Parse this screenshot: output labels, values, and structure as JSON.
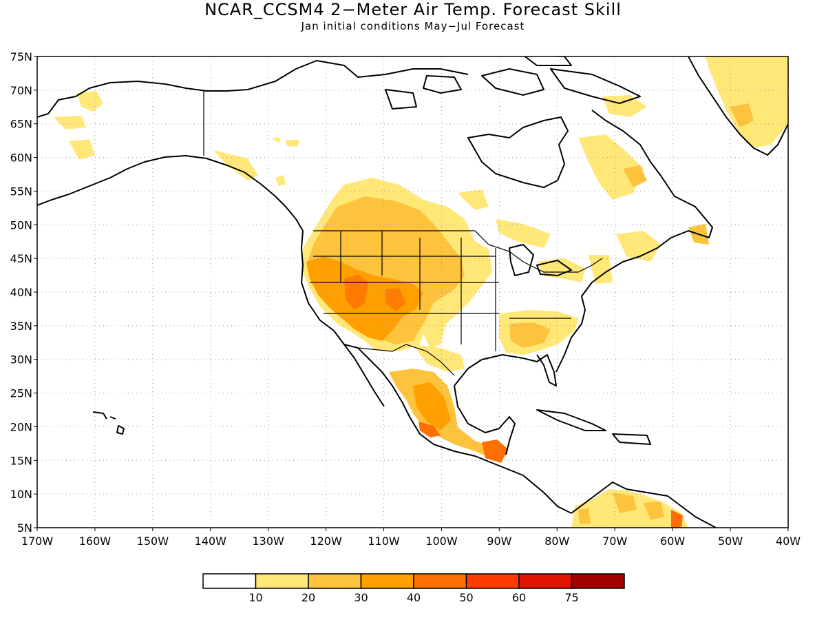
{
  "title": "NCAR_CCSM4 2−Meter Air Temp. Forecast Skill",
  "subtitle": "Jan initial conditions   May−Jul Forecast",
  "map": {
    "projection": "lat-lon",
    "lon_range": [
      -170,
      -40
    ],
    "lat_range": [
      5,
      75
    ],
    "gridlines": "dotted",
    "y_ticks": [
      {
        "value": 75,
        "label": "75N"
      },
      {
        "value": 70,
        "label": "70N"
      },
      {
        "value": 65,
        "label": "65N"
      },
      {
        "value": 60,
        "label": "60N"
      },
      {
        "value": 55,
        "label": "55N"
      },
      {
        "value": 50,
        "label": "50N"
      },
      {
        "value": 45,
        "label": "45N"
      },
      {
        "value": 40,
        "label": "40N"
      },
      {
        "value": 35,
        "label": "35N"
      },
      {
        "value": 30,
        "label": "30N"
      },
      {
        "value": 25,
        "label": "25N"
      },
      {
        "value": 20,
        "label": "20N"
      },
      {
        "value": 15,
        "label": "15N"
      },
      {
        "value": 10,
        "label": "10N"
      },
      {
        "value": 5,
        "label": "5N"
      }
    ],
    "x_ticks": [
      {
        "value": -170,
        "label": "170W"
      },
      {
        "value": -160,
        "label": "160W"
      },
      {
        "value": -150,
        "label": "150W"
      },
      {
        "value": -140,
        "label": "140W"
      },
      {
        "value": -130,
        "label": "130W"
      },
      {
        "value": -120,
        "label": "120W"
      },
      {
        "value": -110,
        "label": "110W"
      },
      {
        "value": -100,
        "label": "100W"
      },
      {
        "value": -90,
        "label": "90W"
      },
      {
        "value": -80,
        "label": "80W"
      },
      {
        "value": -70,
        "label": "70W"
      },
      {
        "value": -60,
        "label": "60W"
      },
      {
        "value": -50,
        "label": "50W"
      },
      {
        "value": -40,
        "label": "40W"
      }
    ]
  },
  "colorbar": {
    "colors": [
      "#ffffff",
      "#ffe878",
      "#fec33c",
      "#ffa000",
      "#ff6e00",
      "#ff3c00",
      "#e11400",
      "#a50000"
    ],
    "labels": [
      "10",
      "20",
      "30",
      "40",
      "50",
      "60",
      "75"
    ]
  }
}
